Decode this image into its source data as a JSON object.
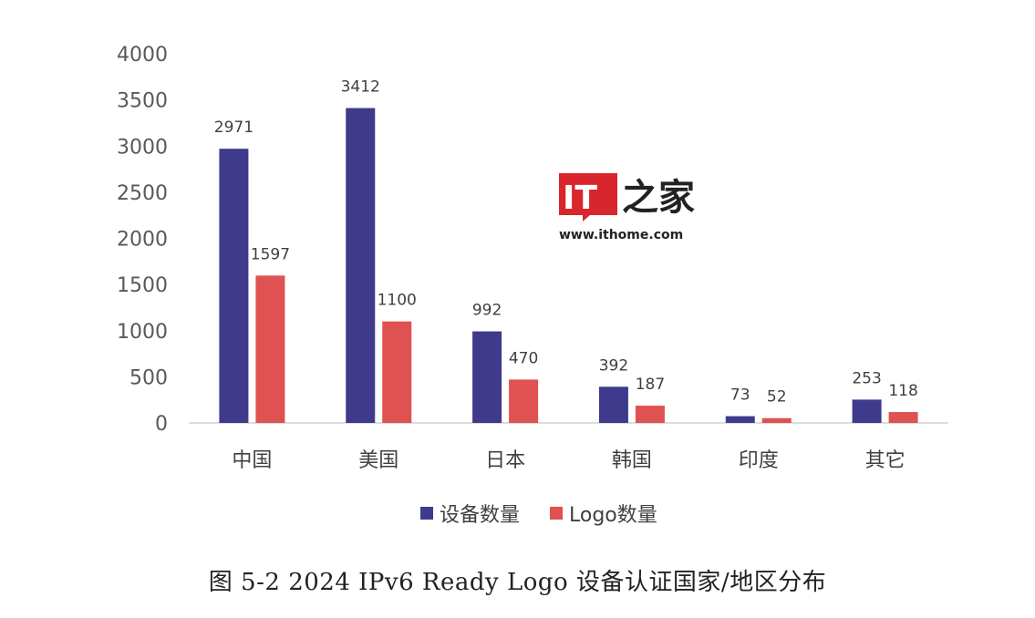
{
  "chart_data": {
    "type": "bar",
    "categories": [
      "中国",
      "美国",
      "日本",
      "韩国",
      "印度",
      "其它"
    ],
    "series": [
      {
        "name": "设备数量",
        "values": [
          2971,
          3412,
          992,
          392,
          73,
          253
        ],
        "color": "#3f3a8c"
      },
      {
        "name": "Logo数量",
        "values": [
          1597,
          1100,
          470,
          187,
          52,
          118
        ],
        "color": "#e05151"
      }
    ],
    "ylim": [
      0,
      4000
    ],
    "yticks": [
      0,
      500,
      1000,
      1500,
      2000,
      2500,
      3000,
      3500,
      4000
    ],
    "legend_position": "bottom",
    "grid": false
  },
  "caption": "图 5-2 2024 IPv6 Ready Logo 设备认证国家/地区分布",
  "watermark": {
    "logo": "IT之家",
    "url": "www.ithome.com",
    "logo_color": "#d9262c"
  }
}
